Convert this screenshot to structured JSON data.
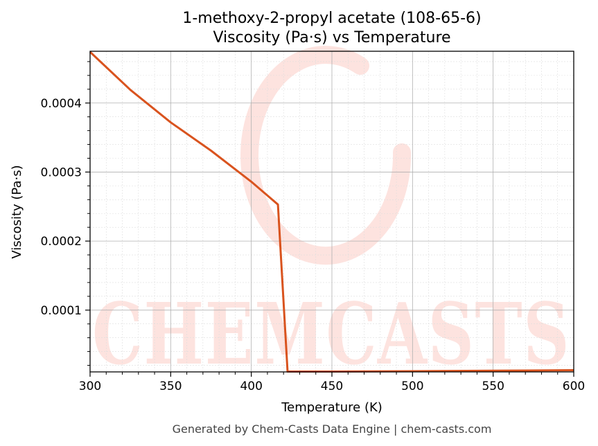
{
  "chart_data": {
    "type": "line",
    "title": "1-methoxy-2-propyl acetate (108-65-6)",
    "subtitle": "Viscosity (Pa·s) vs Temperature",
    "xlabel": "Temperature (K)",
    "ylabel": "Viscosity (Pa·s)",
    "xlim": [
      300,
      600
    ],
    "ylim": [
      1.05e-05,
      0.000475
    ],
    "x_ticks": [
      300,
      350,
      400,
      450,
      500,
      550,
      600
    ],
    "x_tick_labels": [
      "300",
      "350",
      "400",
      "450",
      "500",
      "550",
      "600"
    ],
    "y_ticks": [
      0.0001,
      0.0002,
      0.0003,
      0.0004
    ],
    "y_tick_labels": [
      "0.0001",
      "0.0002",
      "0.0003",
      "0.0004"
    ],
    "grid": true,
    "series": [
      {
        "color": "#d9531e",
        "x": [
          300,
          325,
          350,
          375,
          400,
          416.5,
          422.5,
          450,
          500,
          550,
          600
        ],
        "y": [
          0.000474,
          0.000419,
          0.000372,
          0.000331,
          0.000286,
          0.000253,
          1.1e-05,
          1.1e-05,
          1.15e-05,
          1.22e-05,
          1.3e-05
        ]
      }
    ],
    "watermark": "CHEMCASTS"
  },
  "footer": "Generated by Chem-Casts Data Engine | chem-casts.com"
}
